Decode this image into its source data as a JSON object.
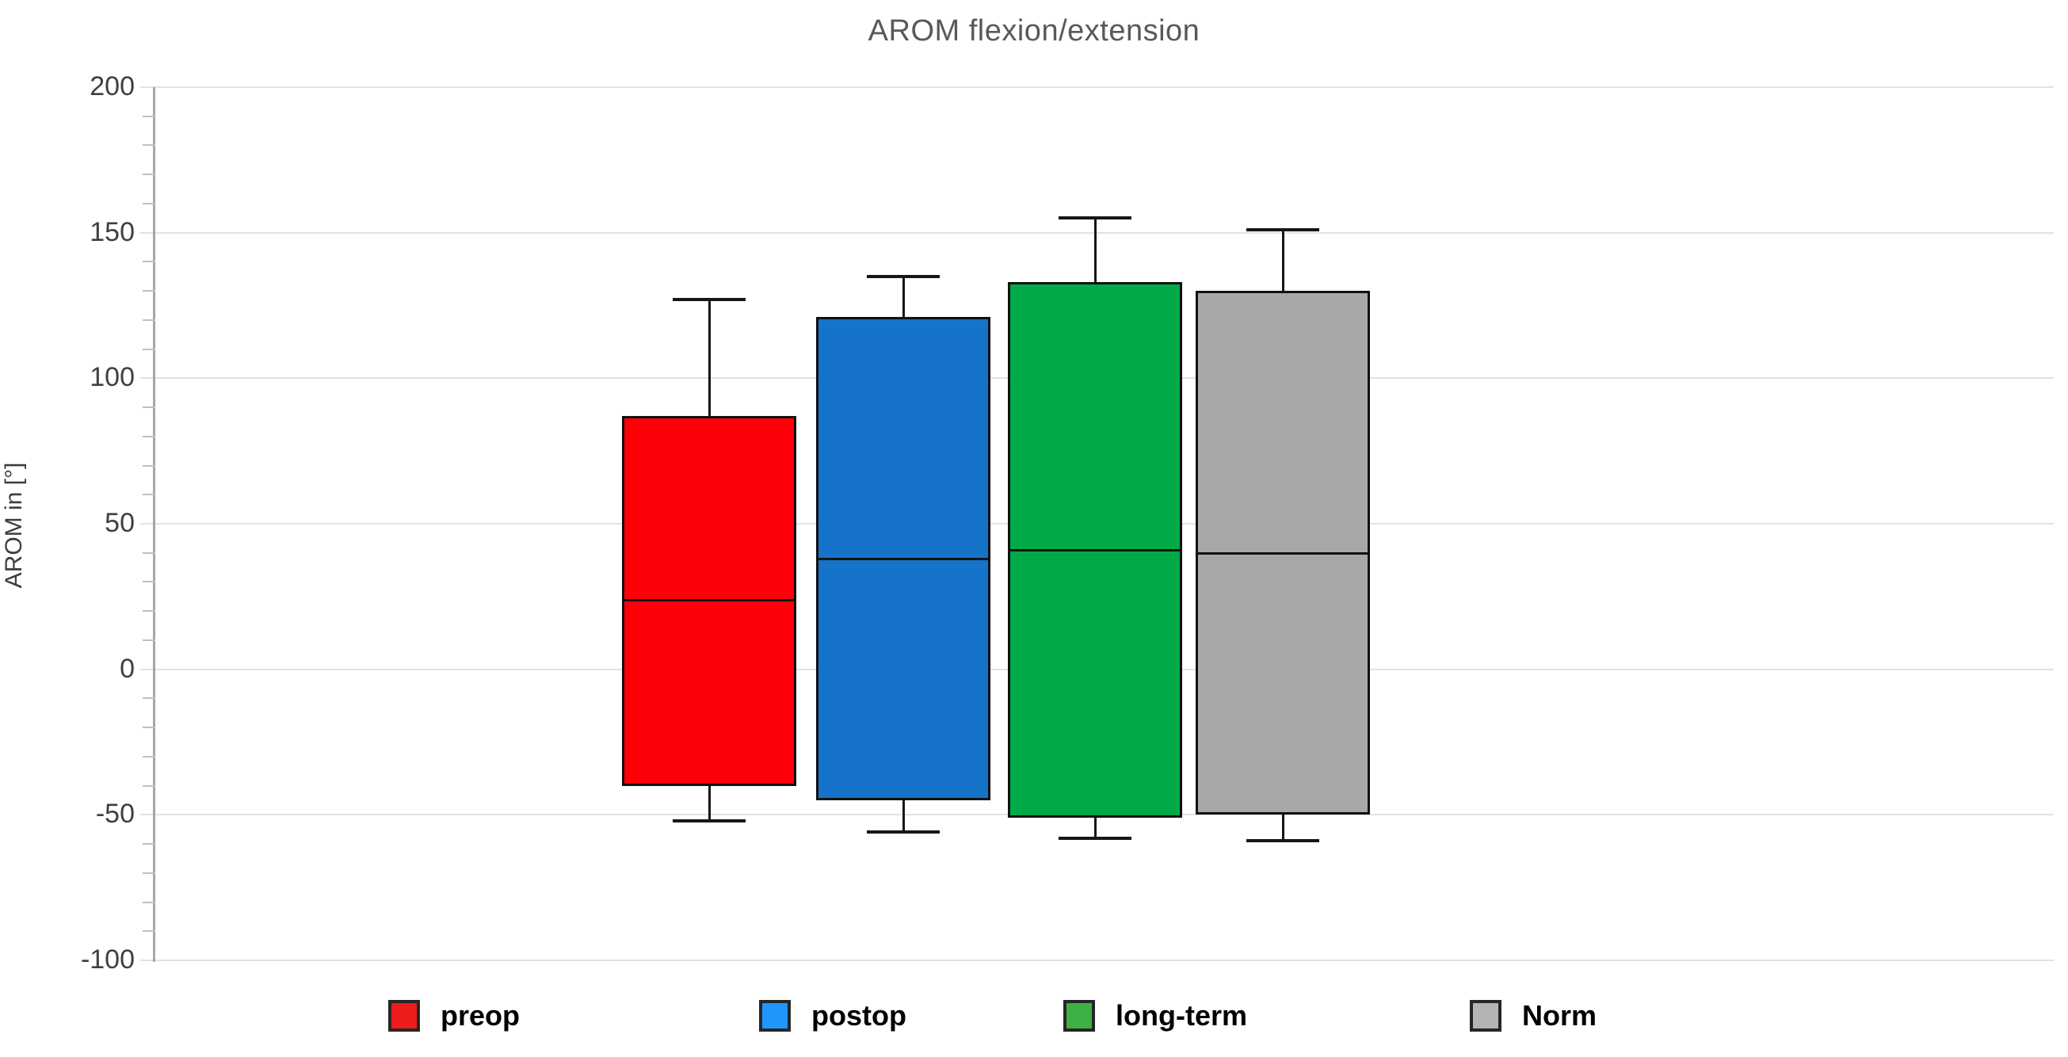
{
  "chart_data": {
    "type": "boxplot",
    "title": "AROM flexion/extension",
    "ylabel": "AROM in [°]",
    "xlabel": "",
    "ylim": [
      -100,
      200
    ],
    "yticks": [
      200,
      150,
      100,
      50,
      0,
      -50,
      -100
    ],
    "minor_tick_step": 10,
    "grid": "horizontal-major",
    "legend_position": "bottom",
    "series": [
      {
        "name": "preop",
        "fill": "#fe0008",
        "legend_fill": "#ee1b1b",
        "whisker_low": -52,
        "q1": -40,
        "median": 24,
        "q3": 87,
        "whisker_high": 127
      },
      {
        "name": "postop",
        "fill": "#1673ca",
        "legend_fill": "#1e97fc",
        "whisker_low": -56,
        "q1": -45,
        "median": 38,
        "q3": 121,
        "whisker_high": 135
      },
      {
        "name": "long-term",
        "fill": "#00ab47",
        "legend_fill": "#3fb044",
        "whisker_low": -58,
        "q1": -51,
        "median": 41,
        "q3": 133,
        "whisker_high": 155
      },
      {
        "name": "Norm",
        "fill": "#a8a8a8",
        "legend_fill": "#b4b4b4",
        "whisker_low": -59,
        "q1": -50,
        "median": 40,
        "q3": 130,
        "whisker_high": 151
      }
    ]
  }
}
